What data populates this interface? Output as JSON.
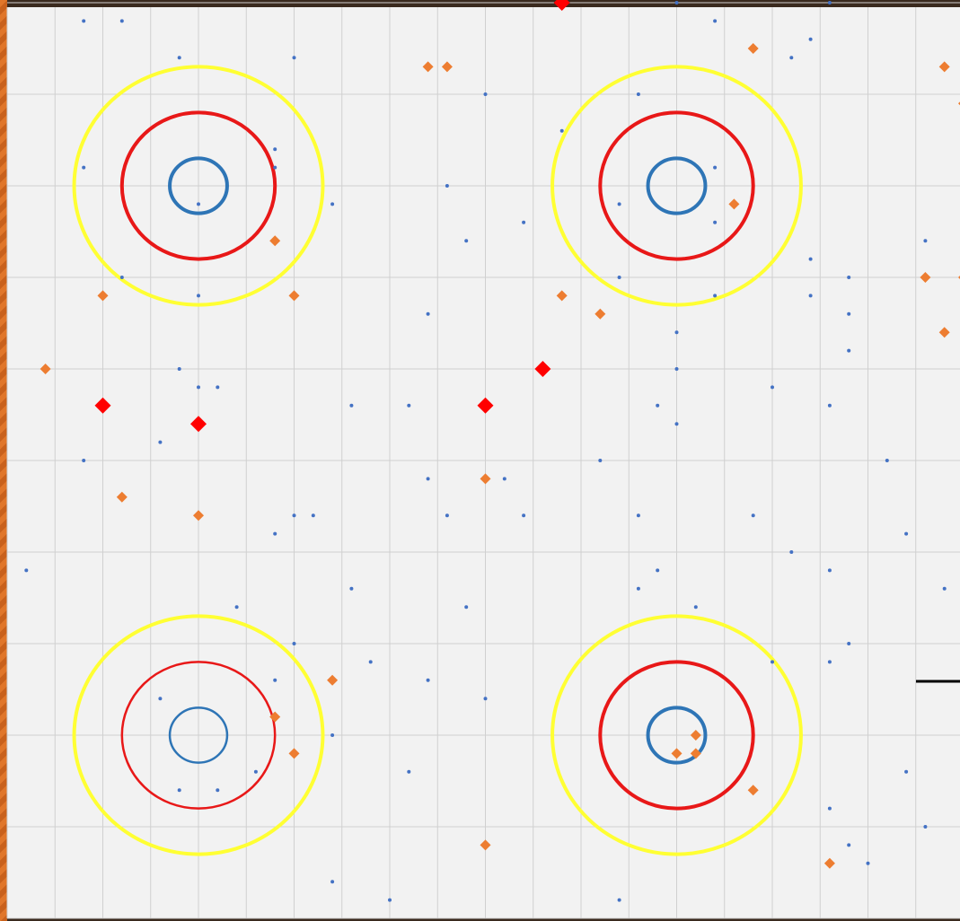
{
  "chart_data": {
    "type": "scatter",
    "title": "",
    "xlabel": "",
    "ylabel": "",
    "xlim": [
      0,
      10
    ],
    "ylim": [
      0,
      10
    ],
    "grid": true,
    "legend": "none",
    "colors": {
      "background": "#f2f2f2",
      "grid": "#d0d0d0",
      "blue": "#4472c4",
      "orange": "#ed7d31",
      "red": "#ff0000",
      "ring_blue": "#2e75b6",
      "ring_red": "#e81818",
      "ring_yellow": "#ffff33"
    },
    "targets": [
      {
        "center": [
          2,
          8
        ],
        "rings": [
          0.3,
          0.8,
          1.3
        ]
      },
      {
        "center": [
          7,
          8
        ],
        "rings": [
          0.3,
          0.8,
          1.3
        ]
      },
      {
        "center": [
          2,
          2
        ],
        "rings": [
          0.3,
          0.8,
          1.3
        ]
      },
      {
        "center": [
          7,
          2
        ],
        "rings": [
          0.3,
          0.8,
          1.3
        ]
      }
    ],
    "series": [
      {
        "marker": "small-dot",
        "color": "blue",
        "points": [
          [
            0.8,
            9.8
          ],
          [
            1.2,
            9.8
          ],
          [
            1.8,
            9.4
          ],
          [
            3.0,
            9.4
          ],
          [
            7.0,
            10.0
          ],
          [
            7.4,
            9.8
          ],
          [
            8.6,
            10.0
          ],
          [
            8.4,
            9.6
          ],
          [
            8.2,
            9.4
          ],
          [
            5.0,
            9.0
          ],
          [
            6.6,
            9.0
          ],
          [
            5.8,
            8.6
          ],
          [
            2.8,
            8.4
          ],
          [
            0.8,
            8.2
          ],
          [
            2.8,
            8.2
          ],
          [
            4.6,
            8.0
          ],
          [
            7.4,
            8.2
          ],
          [
            2.0,
            7.8
          ],
          [
            3.4,
            7.8
          ],
          [
            6.4,
            7.8
          ],
          [
            4.8,
            7.4
          ],
          [
            5.4,
            7.6
          ],
          [
            7.4,
            7.6
          ],
          [
            9.6,
            7.4
          ],
          [
            1.2,
            7.0
          ],
          [
            6.4,
            7.0
          ],
          [
            8.4,
            7.2
          ],
          [
            8.8,
            7.0
          ],
          [
            2.0,
            6.8
          ],
          [
            7.4,
            6.8
          ],
          [
            8.4,
            6.8
          ],
          [
            4.4,
            6.6
          ],
          [
            8.8,
            6.6
          ],
          [
            7.0,
            6.4
          ],
          [
            8.8,
            6.2
          ],
          [
            1.8,
            6.0
          ],
          [
            7.0,
            6.0
          ],
          [
            2.0,
            5.8
          ],
          [
            2.2,
            5.8
          ],
          [
            8.0,
            5.8
          ],
          [
            3.6,
            5.6
          ],
          [
            4.2,
            5.6
          ],
          [
            6.8,
            5.6
          ],
          [
            8.6,
            5.6
          ],
          [
            7.0,
            5.4
          ],
          [
            1.6,
            5.2
          ],
          [
            0.8,
            5.0
          ],
          [
            6.2,
            5.0
          ],
          [
            9.2,
            5.0
          ],
          [
            10.0,
            5.0
          ],
          [
            4.4,
            4.8
          ],
          [
            5.2,
            4.8
          ],
          [
            3.0,
            4.4
          ],
          [
            3.2,
            4.4
          ],
          [
            4.6,
            4.4
          ],
          [
            5.4,
            4.4
          ],
          [
            6.6,
            4.4
          ],
          [
            7.8,
            4.4
          ],
          [
            2.8,
            4.2
          ],
          [
            9.4,
            4.2
          ],
          [
            8.2,
            4.0
          ],
          [
            0.2,
            3.8
          ],
          [
            6.8,
            3.8
          ],
          [
            8.6,
            3.8
          ],
          [
            3.6,
            3.6
          ],
          [
            6.6,
            3.6
          ],
          [
            9.8,
            3.6
          ],
          [
            2.4,
            3.4
          ],
          [
            4.8,
            3.4
          ],
          [
            7.2,
            3.4
          ],
          [
            10.0,
            3.2
          ],
          [
            3.0,
            3.0
          ],
          [
            8.8,
            3.0
          ],
          [
            3.8,
            2.8
          ],
          [
            4.4,
            2.6
          ],
          [
            8.0,
            2.8
          ],
          [
            8.6,
            2.8
          ],
          [
            2.8,
            2.6
          ],
          [
            1.6,
            2.4
          ],
          [
            5.0,
            2.4
          ],
          [
            3.4,
            2.0
          ],
          [
            7.2,
            1.8
          ],
          [
            2.6,
            1.6
          ],
          [
            4.2,
            1.6
          ],
          [
            9.4,
            1.6
          ],
          [
            1.8,
            1.4
          ],
          [
            2.2,
            1.4
          ],
          [
            8.6,
            1.2
          ],
          [
            9.6,
            1.0
          ],
          [
            8.8,
            0.8
          ],
          [
            9.0,
            0.6
          ],
          [
            3.4,
            0.4
          ],
          [
            4.0,
            0.2
          ],
          [
            6.4,
            0.2
          ]
        ]
      },
      {
        "marker": "diamond",
        "color": "orange",
        "points": [
          [
            4.4,
            9.3
          ],
          [
            4.6,
            9.3
          ],
          [
            7.8,
            9.5
          ],
          [
            9.8,
            9.3
          ],
          [
            10.0,
            8.9
          ],
          [
            7.6,
            7.8
          ],
          [
            2.8,
            7.4
          ],
          [
            1.0,
            6.8
          ],
          [
            3.0,
            6.8
          ],
          [
            5.8,
            6.8
          ],
          [
            6.2,
            6.6
          ],
          [
            9.6,
            7.0
          ],
          [
            10.0,
            7.0
          ],
          [
            9.8,
            6.4
          ],
          [
            0.4,
            6.0
          ],
          [
            5.0,
            4.8
          ],
          [
            1.2,
            4.6
          ],
          [
            2.0,
            4.4
          ],
          [
            3.4,
            2.6
          ],
          [
            2.8,
            2.2
          ],
          [
            3.0,
            1.8
          ],
          [
            7.2,
            2.0
          ],
          [
            7.0,
            1.8
          ],
          [
            7.2,
            1.8
          ],
          [
            7.8,
            1.4
          ],
          [
            5.0,
            0.8
          ],
          [
            8.6,
            0.6
          ]
        ]
      },
      {
        "marker": "large-diamond",
        "color": "red",
        "points": [
          [
            5.8,
            10.0
          ],
          [
            1.0,
            5.6
          ],
          [
            2.0,
            5.4
          ],
          [
            5.0,
            5.6
          ],
          [
            5.6,
            6.0
          ]
        ]
      }
    ]
  }
}
